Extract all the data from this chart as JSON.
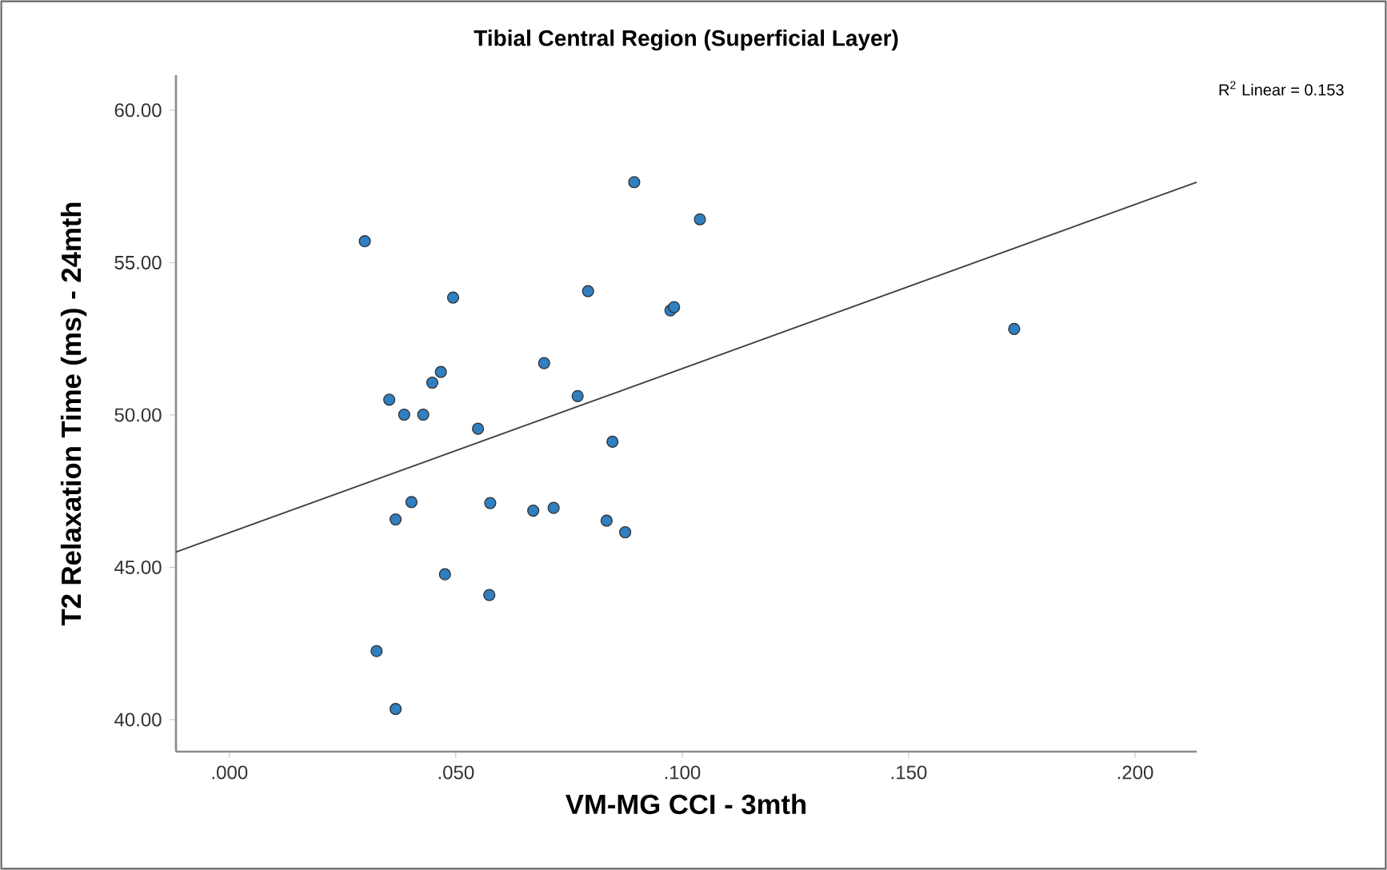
{
  "chart_data": {
    "type": "scatter",
    "title": "Tibial Central Region (Superficial Layer)",
    "xlabel": "VM-MG CCI - 3mth",
    "ylabel": "T2 Relaxation Time (ms) - 24mth",
    "annotations": [
      "R$^{2}$ Linear = 0.153"
    ],
    "xlim": [
      -0.0118,
      0.2136
    ],
    "ylim": [
      38.95,
      61.15
    ],
    "xticks": [
      {
        "value": 0,
        "label": ".000"
      },
      {
        "value": 0.05,
        "label": ".050"
      },
      {
        "value": 0.1,
        "label": ".100"
      },
      {
        "value": 0.15,
        "label": ".150"
      },
      {
        "value": 0.2,
        "label": ".200"
      }
    ],
    "yticks": [
      {
        "value": 40,
        "label": "40.00"
      },
      {
        "value": 45,
        "label": "45.00"
      },
      {
        "value": 50,
        "label": "50.00"
      },
      {
        "value": 55,
        "label": "55.00"
      },
      {
        "value": 60,
        "label": "60.00"
      }
    ],
    "grid": false,
    "series": [
      {
        "color": "#2f7fc1",
        "marker": "circle",
        "x": [
          0.0299,
          0.0494,
          0.0894,
          0.0792,
          0.0974,
          0.0982,
          0.0695,
          0.0467,
          0.0448,
          0.0353,
          0.0386,
          0.0428,
          0.0769,
          0.0549,
          0.0846,
          0.0402,
          0.0576,
          0.0671,
          0.0716,
          0.0367,
          0.0833,
          0.0874,
          0.0476,
          0.0574,
          0.0325,
          0.0367,
          0.1039,
          0.1733
        ],
        "values": [
          55.7,
          53.85,
          57.64,
          54.06,
          53.43,
          53.54,
          51.7,
          51.41,
          51.06,
          50.5,
          50.01,
          50.01,
          50.62,
          49.55,
          49.12,
          47.14,
          47.11,
          46.86,
          46.95,
          46.57,
          46.53,
          46.15,
          44.77,
          44.09,
          42.25,
          40.35,
          56.42,
          52.82
        ]
      },
      {
        "type": "line",
        "color": "#404040",
        "marker": "none",
        "line_style": "solid",
        "x": [
          -0.0118,
          0.2136
        ],
        "values": [
          45.5,
          57.64
        ]
      }
    ]
  }
}
